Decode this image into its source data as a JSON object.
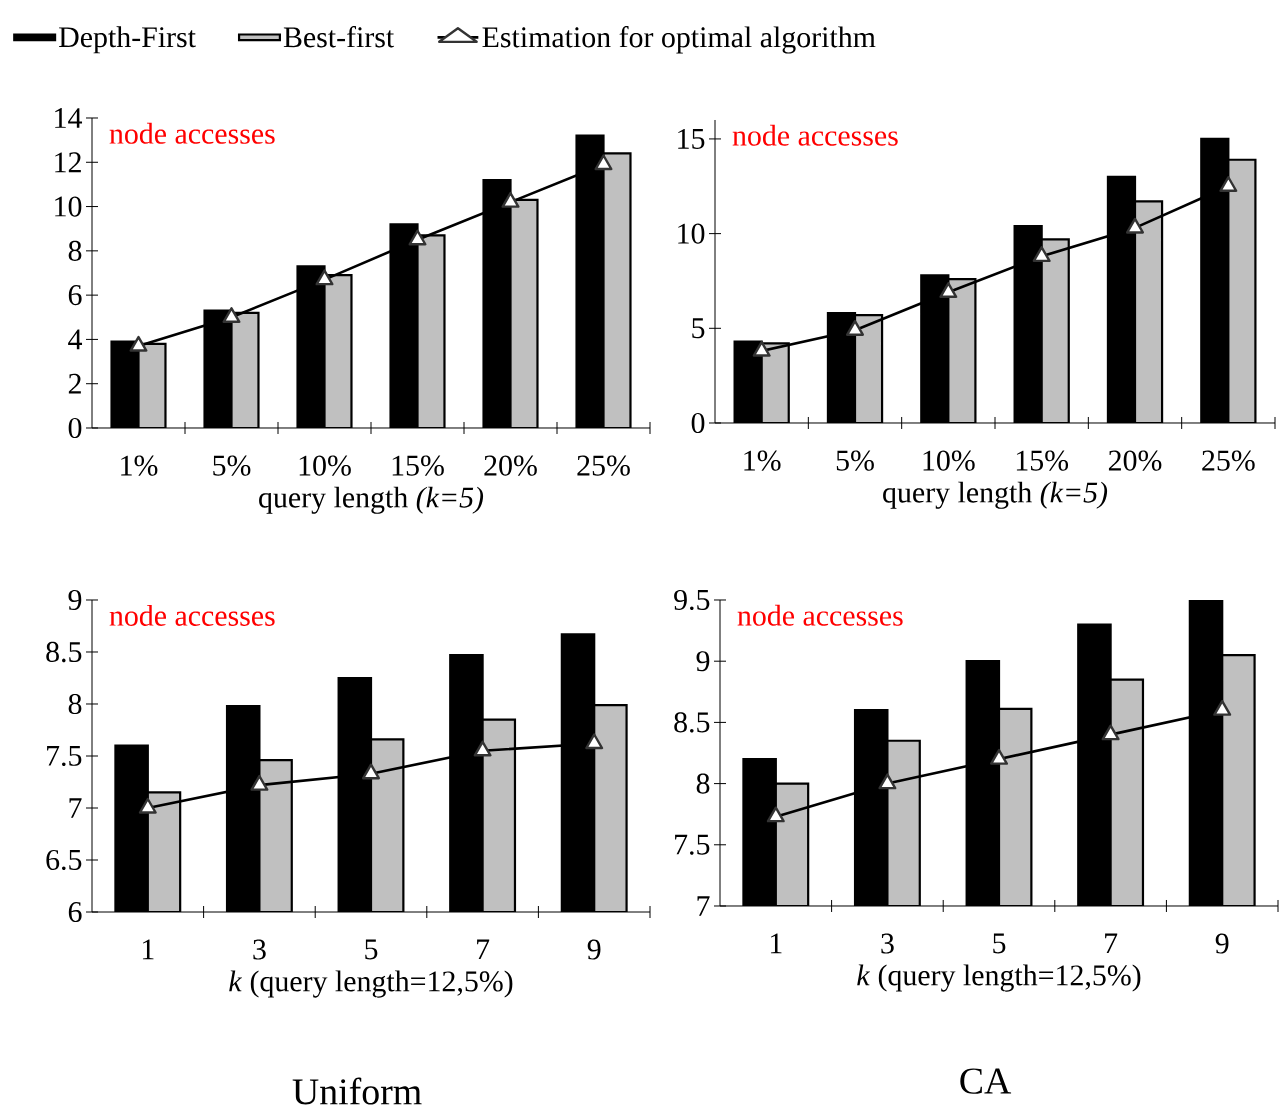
{
  "chart_data": [
    {
      "type": "bar",
      "ylabel": "node accesses",
      "xlabel": "query length *(k=5)*",
      "categories": [
        "1%",
        "5%",
        "10%",
        "15%",
        "20%",
        "25%"
      ],
      "series": [
        {
          "name": "Depth-First",
          "color": "#000000",
          "values": [
            3.9,
            5.3,
            7.3,
            9.2,
            11.2,
            13.2
          ]
        },
        {
          "name": "Best-first",
          "color": "#c0c0c0",
          "values": [
            3.8,
            5.2,
            6.9,
            8.7,
            10.3,
            12.4
          ]
        },
        {
          "name": "Estimation for optimal algorithm",
          "type": "line",
          "marker": "triangle",
          "color": "#000000",
          "values": [
            3.7,
            5.0,
            6.7,
            8.5,
            10.2,
            11.9
          ]
        }
      ],
      "ylim": [
        0,
        14
      ],
      "yticks": [
        0,
        2,
        4,
        6,
        8,
        10,
        12,
        14
      ],
      "legend": "top"
    },
    {
      "type": "bar",
      "ylabel": "node accesses",
      "xlabel": "query length *(k=5)*",
      "categories": [
        "1%",
        "5%",
        "10%",
        "15%",
        "20%",
        "25%"
      ],
      "series": [
        {
          "color": "#000000",
          "values": [
            4.3,
            5.8,
            7.8,
            10.4,
            13.0,
            15.0
          ]
        },
        {
          "color": "#c0c0c0",
          "values": [
            4.2,
            5.7,
            7.6,
            9.7,
            11.7,
            13.9
          ]
        },
        {
          "type": "line",
          "marker": "triangle",
          "color": "#000000",
          "values": [
            3.8,
            4.9,
            6.9,
            8.8,
            10.3,
            12.5
          ]
        }
      ],
      "ylim": [
        0,
        16
      ],
      "yticks": [
        0,
        5,
        10,
        15
      ]
    },
    {
      "type": "bar",
      "ylabel": "node accesses",
      "xlabel": "*k* (query length=12,5%)",
      "categories": [
        "1",
        "3",
        "5",
        "7",
        "9"
      ],
      "series": [
        {
          "color": "#000000",
          "values": [
            7.6,
            7.98,
            8.25,
            8.47,
            8.67
          ]
        },
        {
          "color": "#c0c0c0",
          "values": [
            7.15,
            7.46,
            7.66,
            7.85,
            7.99
          ]
        },
        {
          "type": "line",
          "marker": "triangle",
          "color": "#000000",
          "values": [
            7.0,
            7.22,
            7.33,
            7.55,
            7.62
          ]
        }
      ],
      "ylim": [
        6,
        9
      ],
      "yticks": [
        6,
        6.5,
        7,
        7.5,
        8,
        8.5,
        9
      ],
      "annotations": [
        "Uniform"
      ]
    },
    {
      "type": "bar",
      "ylabel": "node accesses",
      "xlabel": "*k* (query length=12,5%)",
      "categories": [
        "1",
        "3",
        "5",
        "7",
        "9"
      ],
      "series": [
        {
          "color": "#000000",
          "values": [
            8.2,
            8.6,
            9.0,
            9.3,
            9.5
          ]
        },
        {
          "color": "#c0c0c0",
          "values": [
            8.0,
            8.35,
            8.61,
            8.85,
            9.05
          ]
        },
        {
          "type": "line",
          "marker": "triangle",
          "color": "#000000",
          "values": [
            7.73,
            8.0,
            8.2,
            8.4,
            8.6
          ]
        }
      ],
      "ylim": [
        7,
        9.5
      ],
      "yticks": [
        7,
        7.5,
        8,
        8.5,
        9,
        9.5
      ],
      "annotations": [
        "CA"
      ]
    }
  ]
}
